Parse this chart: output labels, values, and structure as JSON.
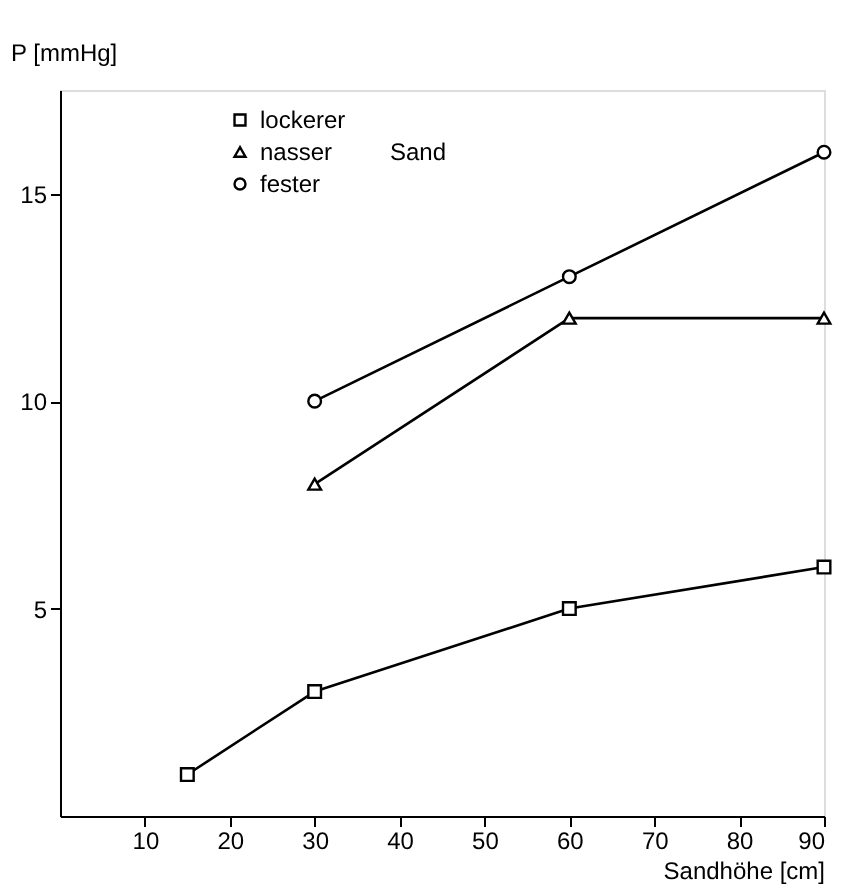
{
  "chart_data": {
    "type": "line",
    "xlabel": "Sandhöhe [cm]",
    "ylabel": "P [mmHg]",
    "xlim": [
      0,
      90
    ],
    "xticks": [
      10,
      20,
      30,
      40,
      50,
      60,
      70,
      80,
      90
    ],
    "ylim": [
      0,
      17.5
    ],
    "yticks": [
      5,
      10,
      15
    ],
    "grid": false,
    "legend": "top left",
    "annotations": [
      "Sand"
    ],
    "series": [
      {
        "name": "lockerer",
        "color": "#000000",
        "marker": "square",
        "x": [
          15,
          30,
          60,
          90
        ],
        "values": [
          1,
          3,
          5,
          6
        ]
      },
      {
        "name": "nasser",
        "color": "#000000",
        "marker": "triangle",
        "x": [
          30,
          60,
          90
        ],
        "values": [
          8,
          12,
          12
        ]
      },
      {
        "name": "fester",
        "color": "#000000",
        "marker": "circle",
        "x": [
          30,
          60,
          90
        ],
        "values": [
          10,
          13,
          16
        ]
      }
    ]
  }
}
